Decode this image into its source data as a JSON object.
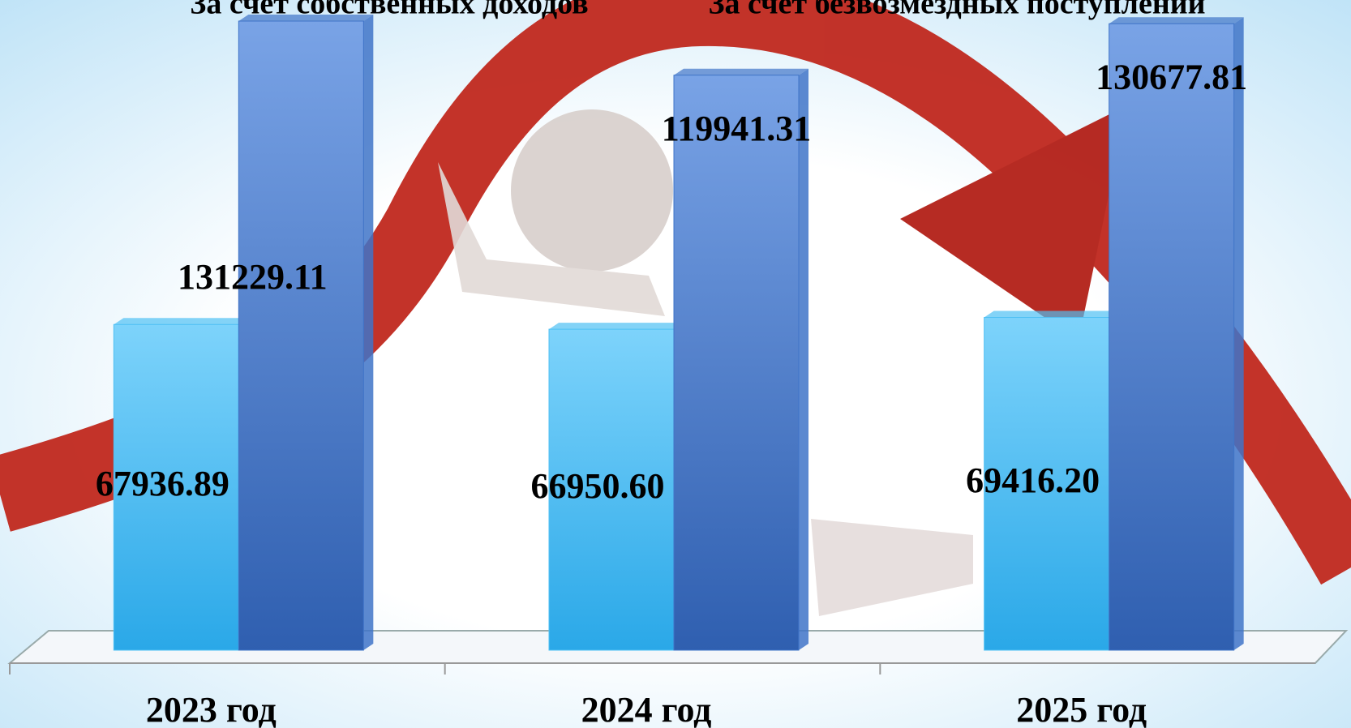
{
  "chart_data": {
    "type": "bar",
    "categories": [
      "2023 год",
      "2024 год",
      "2025 год"
    ],
    "series": [
      {
        "name": "За счет собственных доходов",
        "color": "#4ec0f4",
        "values": [
          67936.89,
          66950.6,
          69416.2
        ],
        "value_labels": [
          "67936.89",
          "66950.60",
          "69416.20"
        ]
      },
      {
        "name": "За счет безвозмездных поступлений",
        "color": "#3f74c8",
        "values": [
          131229.11,
          119941.31,
          130677.81
        ]
      }
    ]
  }
}
